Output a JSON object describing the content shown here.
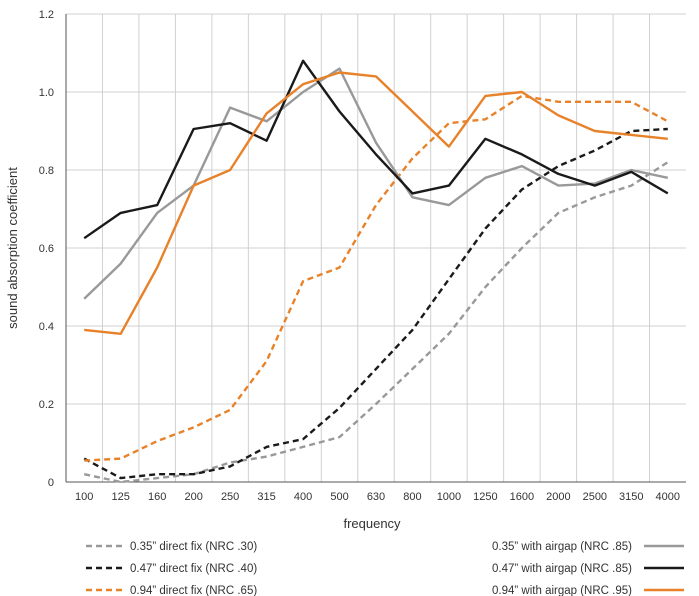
{
  "chart_data": {
    "type": "line",
    "xlabel": "frequency",
    "ylabel": "sound absorption coefficient",
    "ylim": [
      0,
      1.2
    ],
    "yticks": [
      "0",
      "0.2",
      "0.4",
      "0.6",
      "0.8",
      "1.0",
      "1.2"
    ],
    "categories": [
      "100",
      "125",
      "160",
      "200",
      "250",
      "315",
      "400",
      "500",
      "630",
      "800",
      "1000",
      "1250",
      "1600",
      "2000",
      "2500",
      "3150",
      "4000"
    ],
    "grid": true,
    "legend_position": "bottom",
    "series": [
      {
        "name": "0.35” direct fix (NRC .30)",
        "color": "#999999",
        "style": "dashed",
        "legend_side": "left",
        "values": [
          0.02,
          0.0,
          0.01,
          0.02,
          0.05,
          0.065,
          0.09,
          0.115,
          0.2,
          0.29,
          0.38,
          0.5,
          0.6,
          0.69,
          0.73,
          0.76,
          0.82
        ]
      },
      {
        "name": "0.47” direct fix (NRC .40)",
        "color": "#1a1a1a",
        "style": "dashed",
        "legend_side": "left",
        "values": [
          0.06,
          0.01,
          0.02,
          0.02,
          0.04,
          0.09,
          0.11,
          0.19,
          0.29,
          0.39,
          0.52,
          0.65,
          0.75,
          0.81,
          0.85,
          0.9,
          0.905
        ]
      },
      {
        "name": "0.94” direct fix (NRC .65)",
        "color": "#e8822a",
        "style": "dashed",
        "legend_side": "left",
        "values": [
          0.055,
          0.06,
          0.105,
          0.14,
          0.185,
          0.31,
          0.515,
          0.55,
          0.71,
          0.83,
          0.92,
          0.93,
          0.99,
          0.975,
          0.975,
          0.975,
          0.925
        ]
      },
      {
        "name": "0.35” with airgap (NRC .85)",
        "color": "#999999",
        "style": "solid",
        "legend_side": "right",
        "values": [
          0.47,
          0.56,
          0.69,
          0.76,
          0.96,
          0.925,
          1.0,
          1.06,
          0.87,
          0.73,
          0.71,
          0.78,
          0.81,
          0.76,
          0.765,
          0.8,
          0.78
        ]
      },
      {
        "name": "0.47” with airgap (NRC .85)",
        "color": "#1a1a1a",
        "style": "solid",
        "legend_side": "right",
        "values": [
          0.625,
          0.69,
          0.71,
          0.905,
          0.92,
          0.875,
          1.08,
          0.95,
          0.84,
          0.74,
          0.76,
          0.88,
          0.84,
          0.79,
          0.76,
          0.795,
          0.74
        ]
      },
      {
        "name": "0.94” with airgap (NRC .95)",
        "color": "#e8822a",
        "style": "solid",
        "legend_side": "right",
        "values": [
          0.39,
          0.38,
          0.55,
          0.76,
          0.8,
          0.945,
          1.02,
          1.05,
          1.04,
          0.95,
          0.86,
          0.99,
          1.0,
          0.94,
          0.9,
          0.89,
          0.88
        ]
      }
    ]
  }
}
